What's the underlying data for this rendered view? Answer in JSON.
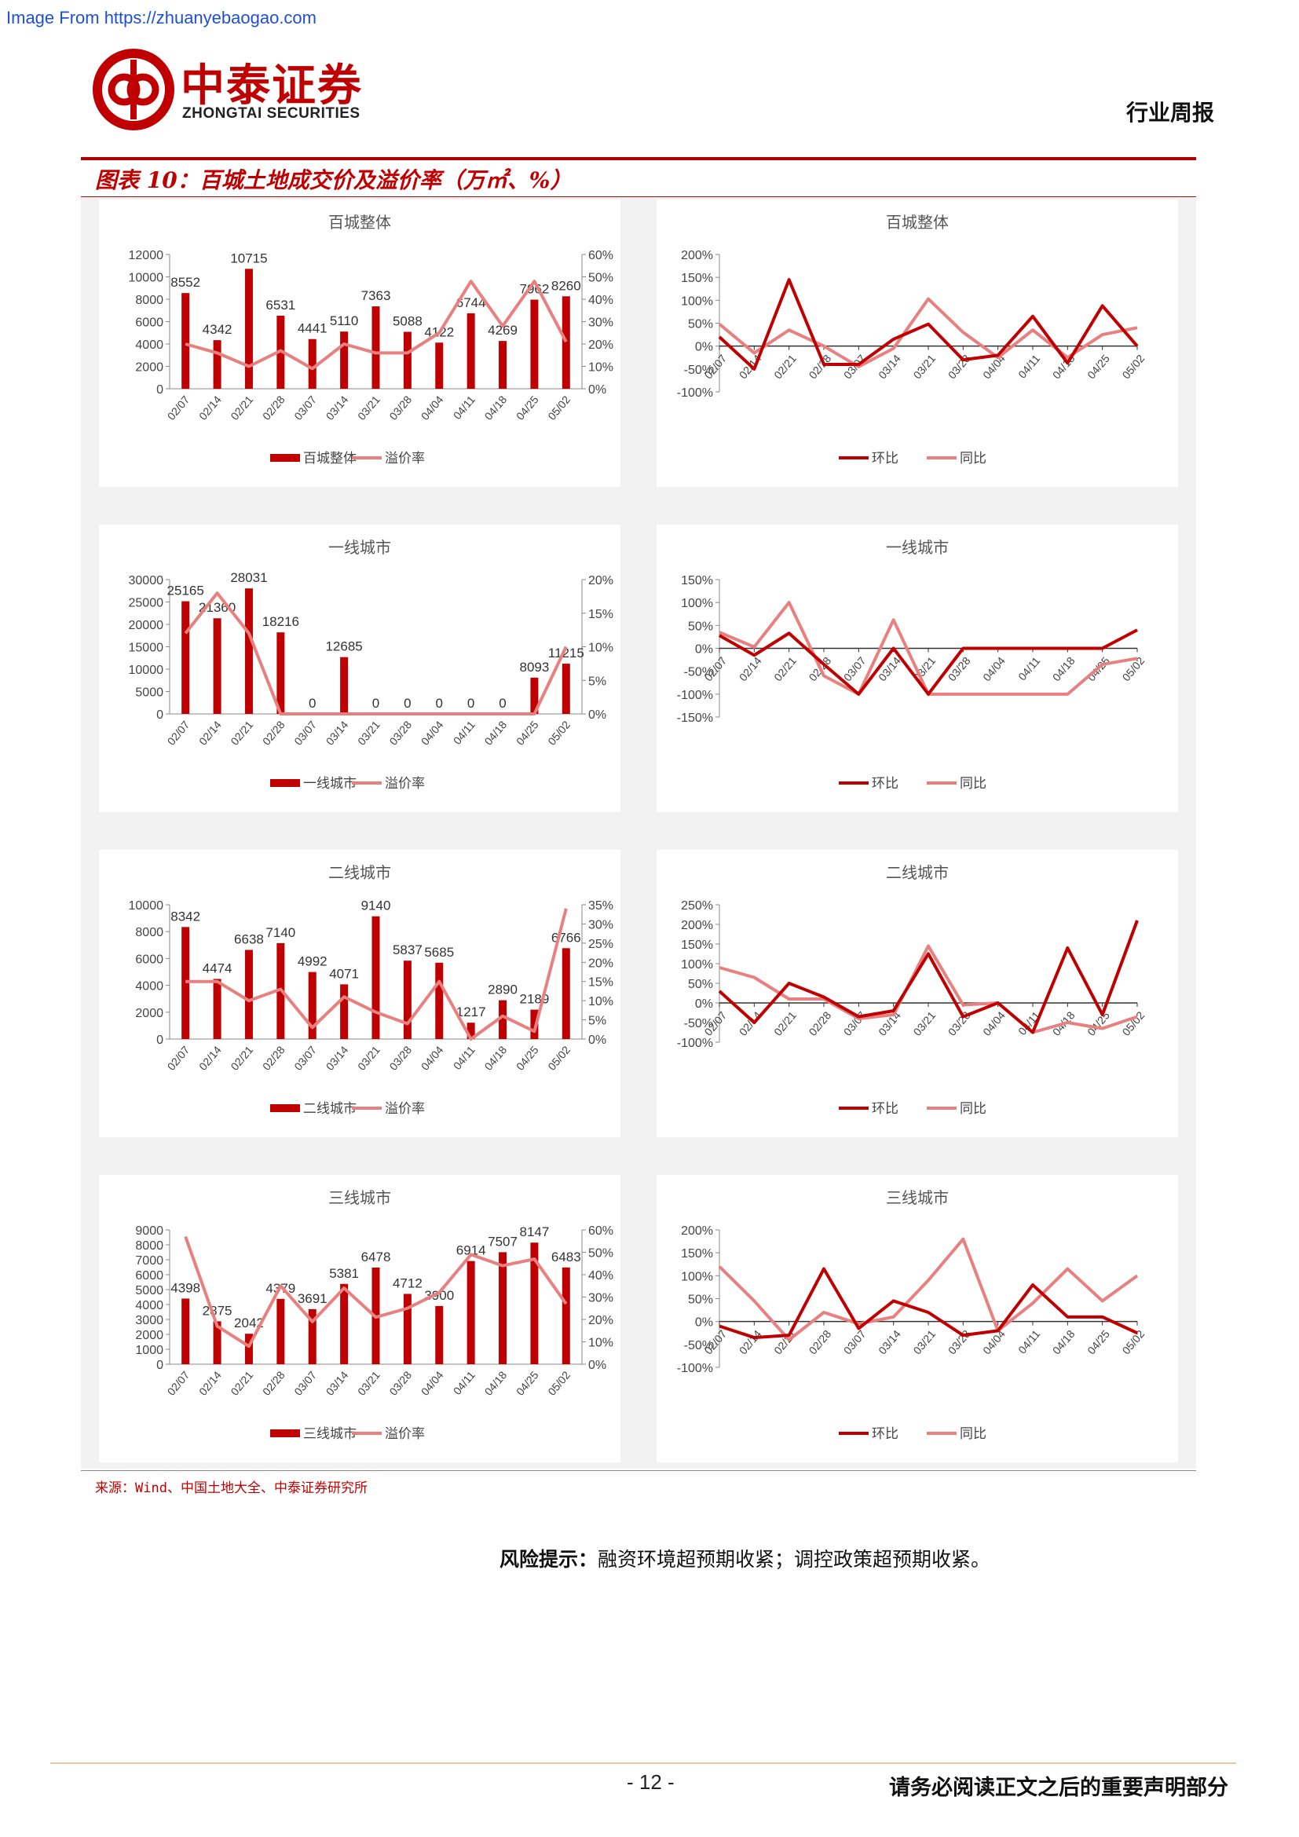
{
  "watermark": "Image From https://zhuanyebaogao.com",
  "header": {
    "logo_cn": "中泰证券",
    "logo_en": "ZHONGTAI SECURITIES",
    "report_type": "行业周报"
  },
  "figure_title": "图表 10：百城土地成交价及溢价率（万㎡、%）",
  "source": "来源：Wind、中国土地大全、中泰证券研究所",
  "risk_label": "风险提示：",
  "risk_text": "融资环境超预期收紧；调控政策超预期收紧。",
  "footer": {
    "page_number": "- 12 -",
    "notice": "请务必阅读正文之后的重要声明部分"
  },
  "colors": {
    "bar": "#c00000",
    "line_dark": "#c00000",
    "line_light": "#e88080",
    "axis": "#888888"
  },
  "chart_data": [
    {
      "type": "bar+line",
      "title": "百城整体",
      "categories": [
        "02/07",
        "02/14",
        "02/21",
        "02/28",
        "03/07",
        "03/14",
        "03/21",
        "03/28",
        "04/04",
        "04/11",
        "04/18",
        "04/25",
        "05/02"
      ],
      "series": [
        {
          "name": "百城整体",
          "kind": "bar",
          "axis": "left",
          "values": [
            8552,
            4342,
            10715,
            6531,
            4441,
            5110,
            7363,
            5088,
            4122,
            6744,
            4269,
            7962,
            8260
          ]
        },
        {
          "name": "溢价率",
          "kind": "line",
          "axis": "right",
          "values": [
            20,
            16,
            10,
            17,
            9,
            20,
            16,
            16,
            25,
            48,
            28,
            48,
            21
          ]
        }
      ],
      "left_axis": {
        "ylim": [
          0,
          12000
        ],
        "ticks": [
          "0",
          "2000",
          "4000",
          "6000",
          "8000",
          "10000",
          "12000"
        ]
      },
      "right_axis": {
        "ylim": [
          0,
          60
        ],
        "ticks": [
          "0%",
          "10%",
          "20%",
          "30%",
          "40%",
          "50%",
          "60%"
        ]
      },
      "data_labels": [
        "8552",
        "4342",
        "10715",
        "6531",
        "4441",
        "5110",
        "7363",
        "5088",
        "4122",
        "6744",
        "4269",
        "7962",
        "8260"
      ]
    },
    {
      "type": "line",
      "title": "百城整体",
      "categories": [
        "02/07",
        "02/14",
        "02/21",
        "02/28",
        "03/07",
        "03/14",
        "03/21",
        "03/28",
        "04/04",
        "04/11",
        "04/18",
        "04/25",
        "05/02"
      ],
      "series": [
        {
          "name": "环比",
          "values": [
            20,
            -50,
            145,
            -40,
            -40,
            15,
            48,
            -30,
            -20,
            65,
            -37,
            88,
            0
          ]
        },
        {
          "name": "同比",
          "values": [
            48,
            -15,
            35,
            0,
            -45,
            -5,
            103,
            30,
            -25,
            35,
            -25,
            25,
            40
          ]
        }
      ],
      "ylim": [
        -100,
        200
      ],
      "ticks": [
        "-100%",
        "-50%",
        "0%",
        "50%",
        "100%",
        "150%",
        "200%"
      ]
    },
    {
      "type": "bar+line",
      "title": "一线城市",
      "categories": [
        "02/07",
        "02/14",
        "02/21",
        "02/28",
        "03/07",
        "03/14",
        "03/21",
        "03/28",
        "04/04",
        "04/11",
        "04/18",
        "04/25",
        "05/02"
      ],
      "series": [
        {
          "name": "一线城市",
          "kind": "bar",
          "axis": "left",
          "values": [
            25165,
            21360,
            28031,
            18216,
            0,
            12685,
            0,
            0,
            0,
            0,
            0,
            8093,
            11215
          ]
        },
        {
          "name": "溢价率",
          "kind": "line",
          "axis": "right",
          "values": [
            12,
            18,
            12,
            0,
            0,
            0,
            0,
            0,
            0,
            0,
            0,
            0,
            10
          ]
        }
      ],
      "left_axis": {
        "ylim": [
          0,
          30000
        ],
        "ticks": [
          "0",
          "5000",
          "10000",
          "15000",
          "20000",
          "25000",
          "30000"
        ]
      },
      "right_axis": {
        "ylim": [
          0,
          20
        ],
        "ticks": [
          "0%",
          "5%",
          "10%",
          "15%",
          "20%"
        ]
      },
      "data_labels": [
        "25165",
        "21360",
        "28031",
        "18216",
        "0",
        "12685",
        "0",
        "0",
        "0",
        "0",
        "0",
        "8093",
        "11215"
      ]
    },
    {
      "type": "line",
      "title": "一线城市",
      "categories": [
        "02/07",
        "02/14",
        "02/21",
        "02/28",
        "03/07",
        "03/14",
        "03/21",
        "03/28",
        "04/04",
        "04/11",
        "04/18",
        "04/25",
        "05/02"
      ],
      "series": [
        {
          "name": "环比",
          "values": [
            28,
            -15,
            33,
            -35,
            -100,
            0,
            -100,
            0,
            0,
            0,
            0,
            0,
            40
          ]
        },
        {
          "name": "同比",
          "values": [
            35,
            3,
            100,
            -60,
            -100,
            62,
            -100,
            -100,
            -100,
            -100,
            -100,
            -35,
            -22
          ]
        }
      ],
      "ylim": [
        -150,
        150
      ],
      "ticks": [
        "-150%",
        "-100%",
        "-50%",
        "0%",
        "50%",
        "100%",
        "150%"
      ]
    },
    {
      "type": "bar+line",
      "title": "二线城市",
      "categories": [
        "02/07",
        "02/14",
        "02/21",
        "02/28",
        "03/07",
        "03/14",
        "03/21",
        "03/28",
        "04/04",
        "04/11",
        "04/18",
        "04/25",
        "05/02"
      ],
      "series": [
        {
          "name": "二线城市",
          "kind": "bar",
          "axis": "left",
          "values": [
            8342,
            4474,
            6638,
            7140,
            4992,
            4071,
            9140,
            5837,
            5685,
            1217,
            2890,
            2189,
            6766
          ]
        },
        {
          "name": "溢价率",
          "kind": "line",
          "axis": "right",
          "values": [
            15,
            15,
            10,
            13,
            3,
            11,
            7,
            4,
            15,
            0,
            6,
            2,
            34
          ]
        }
      ],
      "left_axis": {
        "ylim": [
          0,
          10000
        ],
        "ticks": [
          "0",
          "2000",
          "4000",
          "6000",
          "8000",
          "10000"
        ]
      },
      "right_axis": {
        "ylim": [
          0,
          35
        ],
        "ticks": [
          "0%",
          "5%",
          "10%",
          "15%",
          "20%",
          "25%",
          "30%",
          "35%"
        ]
      },
      "data_labels": [
        "8342",
        "4474",
        "6638",
        "7140",
        "4992",
        "4071",
        "9140",
        "5837",
        "5685",
        "1217",
        "2890",
        "2189",
        "6766"
      ]
    },
    {
      "type": "line",
      "title": "二线城市",
      "categories": [
        "02/07",
        "02/14",
        "02/21",
        "02/28",
        "03/07",
        "03/14",
        "03/21",
        "03/28",
        "04/04",
        "04/11",
        "04/18",
        "04/25",
        "05/02"
      ],
      "series": [
        {
          "name": "环比",
          "values": [
            30,
            -50,
            50,
            15,
            -35,
            -20,
            125,
            -35,
            0,
            -75,
            140,
            -30,
            210
          ]
        },
        {
          "name": "同比",
          "values": [
            90,
            65,
            10,
            10,
            -40,
            -30,
            145,
            -5,
            0,
            -75,
            -50,
            -65,
            -35
          ]
        }
      ],
      "ylim": [
        -100,
        250
      ],
      "ticks": [
        "-100%",
        "-50%",
        "0%",
        "50%",
        "100%",
        "150%",
        "200%",
        "250%"
      ]
    },
    {
      "type": "bar+line",
      "title": "三线城市",
      "categories": [
        "02/07",
        "02/14",
        "02/21",
        "02/28",
        "03/07",
        "03/14",
        "03/21",
        "03/28",
        "04/04",
        "04/11",
        "04/18",
        "04/25",
        "05/02"
      ],
      "series": [
        {
          "name": "三线城市",
          "kind": "bar",
          "axis": "left",
          "values": [
            4398,
            2875,
            2042,
            4379,
            3691,
            5381,
            6478,
            4712,
            3900,
            6914,
            7507,
            8147,
            6483
          ]
        },
        {
          "name": "溢价率",
          "kind": "line",
          "axis": "right",
          "values": [
            57,
            17,
            8,
            35,
            19,
            34,
            21,
            25,
            32,
            49,
            44,
            47,
            27
          ]
        }
      ],
      "left_axis": {
        "ylim": [
          0,
          9000
        ],
        "ticks": [
          "0",
          "1000",
          "2000",
          "3000",
          "4000",
          "5000",
          "6000",
          "7000",
          "8000",
          "9000"
        ]
      },
      "right_axis": {
        "ylim": [
          0,
          60
        ],
        "ticks": [
          "0%",
          "10%",
          "20%",
          "30%",
          "40%",
          "50%",
          "60%"
        ]
      },
      "data_labels": [
        "4398",
        "2875",
        "2042",
        "4379",
        "3691",
        "5381",
        "6478",
        "4712",
        "3900",
        "6914",
        "7507",
        "8147",
        "6483"
      ]
    },
    {
      "type": "line",
      "title": "三线城市",
      "categories": [
        "02/07",
        "02/14",
        "02/21",
        "02/28",
        "03/07",
        "03/14",
        "03/21",
        "03/28",
        "04/04",
        "04/11",
        "04/18",
        "04/25",
        "05/02"
      ],
      "series": [
        {
          "name": "环比",
          "values": [
            -10,
            -35,
            -30,
            115,
            -15,
            45,
            20,
            -30,
            -20,
            80,
            10,
            10,
            -25
          ]
        },
        {
          "name": "同比",
          "values": [
            120,
            45,
            -40,
            20,
            -5,
            10,
            90,
            180,
            -20,
            40,
            115,
            45,
            100
          ]
        }
      ],
      "ylim": [
        -100,
        200
      ],
      "ticks": [
        "-100%",
        "-50%",
        "0%",
        "50%",
        "100%",
        "150%",
        "200%"
      ]
    }
  ]
}
